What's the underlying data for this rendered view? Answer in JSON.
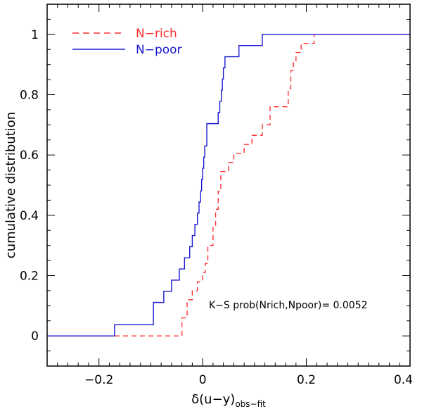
{
  "chart_data": {
    "type": "line",
    "title": "",
    "xlabel_prefix": "δ(u−y)",
    "xlabel_sub": "obs−fit",
    "ylabel": "cumulative distribution",
    "xlim": [
      -0.3,
      0.4
    ],
    "ylim": [
      -0.1,
      1.1
    ],
    "x_ticks": [
      -0.2,
      0,
      0.2,
      0.4
    ],
    "x_tick_labels": [
      "−0.2",
      "0",
      "0.2",
      "0.4"
    ],
    "y_ticks": [
      0,
      0.2,
      0.4,
      0.6,
      0.8,
      1
    ],
    "y_tick_labels": [
      "0",
      "0.2",
      "0.4",
      "0.6",
      "0.8",
      "1"
    ],
    "x_minor_step": 0.02,
    "y_minor_step": 0.05,
    "grid": false,
    "legend_position": "top-left",
    "annotation": "K−S prob(Nrich,Npoor)=  0.0052",
    "series": [
      {
        "name": "N−rich",
        "color": "#ff3030",
        "style": "dashed",
        "steps": [
          [
            -0.3,
            0
          ],
          [
            -0.04,
            0
          ],
          [
            -0.04,
            0.06
          ],
          [
            -0.03,
            0.06
          ],
          [
            -0.03,
            0.12
          ],
          [
            -0.02,
            0.12
          ],
          [
            -0.02,
            0.15
          ],
          [
            -0.01,
            0.15
          ],
          [
            -0.01,
            0.18
          ],
          [
            0.0,
            0.18
          ],
          [
            0.0,
            0.21
          ],
          [
            0.005,
            0.21
          ],
          [
            0.005,
            0.24
          ],
          [
            0.01,
            0.24
          ],
          [
            0.01,
            0.3
          ],
          [
            0.02,
            0.3
          ],
          [
            0.02,
            0.36
          ],
          [
            0.025,
            0.36
          ],
          [
            0.025,
            0.42
          ],
          [
            0.03,
            0.42
          ],
          [
            0.03,
            0.48
          ],
          [
            0.035,
            0.48
          ],
          [
            0.035,
            0.545
          ],
          [
            0.05,
            0.545
          ],
          [
            0.05,
            0.575
          ],
          [
            0.06,
            0.575
          ],
          [
            0.06,
            0.605
          ],
          [
            0.08,
            0.605
          ],
          [
            0.08,
            0.635
          ],
          [
            0.095,
            0.635
          ],
          [
            0.095,
            0.665
          ],
          [
            0.115,
            0.665
          ],
          [
            0.115,
            0.7
          ],
          [
            0.13,
            0.7
          ],
          [
            0.13,
            0.76
          ],
          [
            0.165,
            0.76
          ],
          [
            0.165,
            0.82
          ],
          [
            0.17,
            0.82
          ],
          [
            0.17,
            0.88
          ],
          [
            0.175,
            0.88
          ],
          [
            0.175,
            0.91
          ],
          [
            0.18,
            0.91
          ],
          [
            0.18,
            0.94
          ],
          [
            0.19,
            0.94
          ],
          [
            0.19,
            0.97
          ],
          [
            0.215,
            0.97
          ],
          [
            0.215,
            1.0
          ],
          [
            0.4,
            1.0
          ]
        ]
      },
      {
        "name": "N−poor",
        "color": "#1a1ad0",
        "style": "solid",
        "steps": [
          [
            -0.3,
            0
          ],
          [
            -0.17,
            0
          ],
          [
            -0.17,
            0.037
          ],
          [
            -0.095,
            0.037
          ],
          [
            -0.095,
            0.111
          ],
          [
            -0.075,
            0.111
          ],
          [
            -0.075,
            0.148
          ],
          [
            -0.06,
            0.148
          ],
          [
            -0.06,
            0.185
          ],
          [
            -0.045,
            0.185
          ],
          [
            -0.045,
            0.222
          ],
          [
            -0.035,
            0.222
          ],
          [
            -0.035,
            0.259
          ],
          [
            -0.025,
            0.259
          ],
          [
            -0.025,
            0.296
          ],
          [
            -0.02,
            0.296
          ],
          [
            -0.02,
            0.333
          ],
          [
            -0.015,
            0.333
          ],
          [
            -0.015,
            0.37
          ],
          [
            -0.01,
            0.37
          ],
          [
            -0.01,
            0.407
          ],
          [
            -0.007,
            0.407
          ],
          [
            -0.007,
            0.444
          ],
          [
            -0.004,
            0.444
          ],
          [
            -0.004,
            0.481
          ],
          [
            -0.002,
            0.481
          ],
          [
            -0.002,
            0.519
          ],
          [
            0.0,
            0.519
          ],
          [
            0.0,
            0.556
          ],
          [
            0.002,
            0.556
          ],
          [
            0.002,
            0.593
          ],
          [
            0.004,
            0.593
          ],
          [
            0.004,
            0.63
          ],
          [
            0.008,
            0.63
          ],
          [
            0.008,
            0.704
          ],
          [
            0.03,
            0.704
          ],
          [
            0.03,
            0.741
          ],
          [
            0.033,
            0.741
          ],
          [
            0.033,
            0.778
          ],
          [
            0.036,
            0.778
          ],
          [
            0.036,
            0.815
          ],
          [
            0.038,
            0.815
          ],
          [
            0.038,
            0.852
          ],
          [
            0.04,
            0.852
          ],
          [
            0.04,
            0.889
          ],
          [
            0.043,
            0.889
          ],
          [
            0.043,
            0.926
          ],
          [
            0.07,
            0.926
          ],
          [
            0.07,
            0.963
          ],
          [
            0.115,
            0.963
          ],
          [
            0.115,
            1.0
          ],
          [
            0.4,
            1.0
          ]
        ]
      }
    ]
  }
}
